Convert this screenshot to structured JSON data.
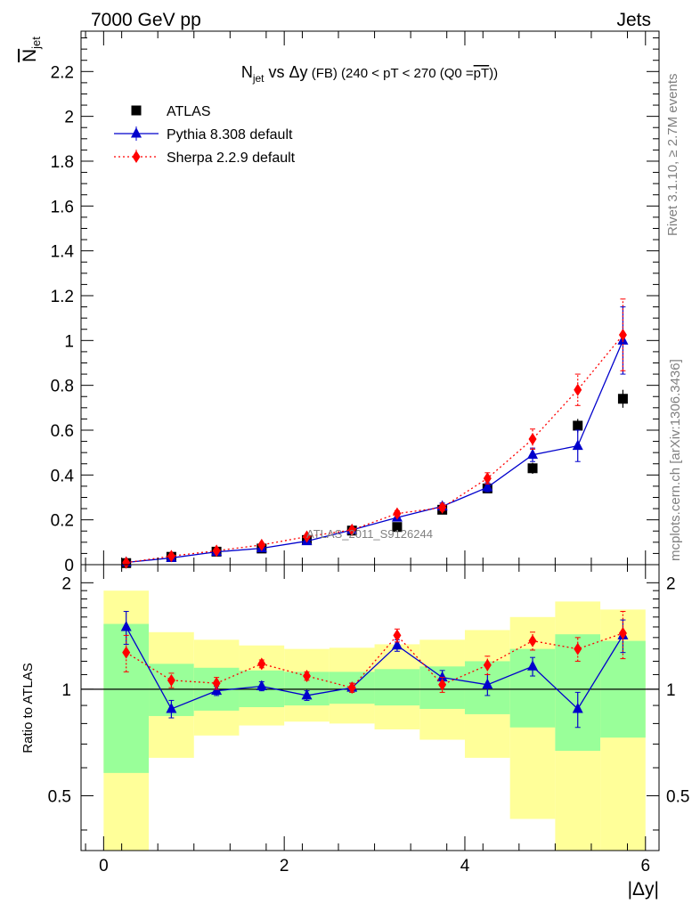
{
  "header": {
    "left_label": "7000 GeV pp",
    "right_label": "Jets"
  },
  "side_labels": {
    "rivet": "Rivet 3.1.10, ≥ 2.7M events",
    "mcplots": "mcplots.cern.ch [arXiv:1306.3436]"
  },
  "watermark": "ATLAS_2011_S9126244",
  "colors": {
    "atlas": "#000000",
    "pythia": "#0000cc",
    "sherpa": "#ff0000",
    "band_outer": "#ffff99",
    "band_inner": "#99ff99"
  },
  "chart_data": [
    {
      "type": "scatter",
      "panel": "main",
      "title": {
        "prefix": "N",
        "sub": "jet",
        "mid": " vs Δy",
        "small": " (FB)",
        "rest": "  (240 < pT < 270 (Q0 =",
        "overline": "pT",
        "tail": "))"
      },
      "ylabel": {
        "main": "N",
        "sub": "jet"
      },
      "xlim": [
        -0.25,
        6.15
      ],
      "ylim": [
        0,
        2.38
      ],
      "yticks": [
        "0",
        "0.2",
        "0.4",
        "0.6",
        "0.8",
        "1",
        "1.2",
        "1.4",
        "1.6",
        "1.8",
        "2",
        "2.2"
      ],
      "legend_position": "top-left",
      "x": [
        0.25,
        0.75,
        1.25,
        1.75,
        2.25,
        2.75,
        3.25,
        3.75,
        4.25,
        4.75,
        5.25,
        5.75
      ],
      "series": [
        {
          "name": "ATLAS",
          "marker": "square",
          "values": [
            0.007,
            0.035,
            0.058,
            0.072,
            0.11,
            0.152,
            0.168,
            0.245,
            0.34,
            0.43,
            0.62,
            0.74
          ],
          "errors": [
            0.002,
            0.005,
            0.006,
            0.007,
            0.008,
            0.01,
            0.012,
            0.015,
            0.02,
            0.025,
            0.03,
            0.04
          ]
        },
        {
          "name": "Pythia 8.308 default",
          "marker": "triangle",
          "values": [
            0.01,
            0.03,
            0.057,
            0.073,
            0.105,
            0.155,
            0.21,
            0.26,
            0.345,
            0.49,
            0.53,
            1.0
          ],
          "errors": [
            0.001,
            0.003,
            0.004,
            0.005,
            0.006,
            0.008,
            0.01,
            0.015,
            0.02,
            0.03,
            0.07,
            0.15
          ]
        },
        {
          "name": "Sherpa 2.2.9 default",
          "marker": "diamond",
          "values": [
            0.009,
            0.038,
            0.062,
            0.088,
            0.125,
            0.155,
            0.228,
            0.255,
            0.385,
            0.56,
            0.78,
            1.025
          ],
          "errors": [
            0.001,
            0.004,
            0.005,
            0.006,
            0.008,
            0.01,
            0.012,
            0.015,
            0.025,
            0.045,
            0.07,
            0.16
          ]
        }
      ]
    },
    {
      "type": "scatter",
      "panel": "ratio",
      "ylabel": "Ratio to ATLAS",
      "xlabel": "|Δy|",
      "xlim": [
        -0.25,
        6.15
      ],
      "ylim": [
        0.35,
        2.25
      ],
      "log_scale": true,
      "yticks": [
        "0.5",
        "1",
        "2"
      ],
      "xticks": [
        "0",
        "2",
        "4",
        "6"
      ],
      "reference_line": 1,
      "x": [
        0.25,
        0.75,
        1.25,
        1.75,
        2.25,
        2.75,
        3.25,
        3.75,
        4.25,
        4.75,
        5.25,
        5.75
      ],
      "bands": {
        "bin_edges": [
          0,
          0.5,
          1,
          1.5,
          2,
          2.5,
          3,
          3.5,
          4,
          4.5,
          5,
          5.5,
          6
        ],
        "inner_low": [
          0.58,
          0.84,
          0.87,
          0.89,
          0.9,
          0.91,
          0.9,
          0.88,
          0.85,
          0.78,
          0.67,
          0.73
        ],
        "inner_high": [
          1.53,
          1.18,
          1.15,
          1.13,
          1.12,
          1.12,
          1.14,
          1.16,
          1.2,
          1.3,
          1.43,
          1.37
        ],
        "outer_low": [
          0.35,
          0.64,
          0.74,
          0.79,
          0.81,
          0.8,
          0.77,
          0.72,
          0.64,
          0.43,
          0.35,
          0.35
        ],
        "outer_high": [
          1.9,
          1.45,
          1.38,
          1.33,
          1.3,
          1.31,
          1.34,
          1.38,
          1.47,
          1.6,
          1.77,
          1.68
        ]
      },
      "series": [
        {
          "name": "Pythia 8.308 default",
          "marker": "triangle",
          "values": [
            1.5,
            0.88,
            0.99,
            1.02,
            0.96,
            1.01,
            1.33,
            1.08,
            1.03,
            1.16,
            0.88,
            1.42
          ],
          "errors": [
            0.16,
            0.05,
            0.03,
            0.03,
            0.03,
            0.03,
            0.05,
            0.05,
            0.07,
            0.07,
            0.1,
            0.15
          ]
        },
        {
          "name": "Sherpa 2.2.9 default",
          "marker": "diamond",
          "values": [
            1.27,
            1.06,
            1.04,
            1.18,
            1.09,
            1.01,
            1.42,
            1.03,
            1.17,
            1.37,
            1.3,
            1.44
          ],
          "errors": [
            0.15,
            0.05,
            0.04,
            0.03,
            0.03,
            0.03,
            0.06,
            0.05,
            0.07,
            0.08,
            0.1,
            0.22
          ]
        }
      ]
    }
  ]
}
